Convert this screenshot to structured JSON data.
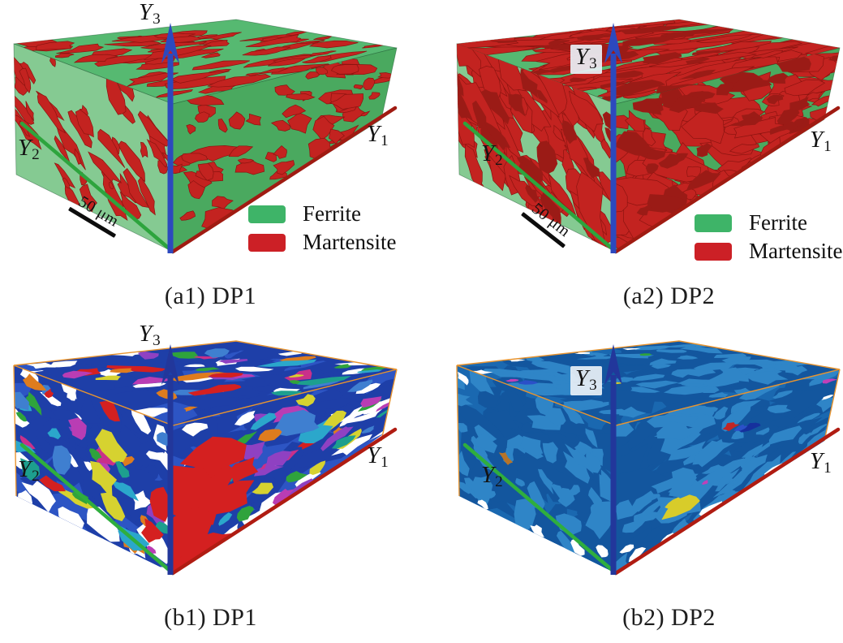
{
  "figure": {
    "background": "#ffffff",
    "panels": [
      {
        "id": "a1",
        "caption": "(a1) DP1",
        "sample": "DP1",
        "view": "phase-map",
        "axes": {
          "y1": {
            "base": "Y",
            "sub": "1"
          },
          "y2": {
            "base": "Y",
            "sub": "2"
          },
          "y3": {
            "base": "Y",
            "sub": "3"
          }
        },
        "scale_bar": {
          "label": "50 μm"
        },
        "legend": [
          {
            "label": "Ferrite",
            "color": "#3eb468"
          },
          {
            "label": "Martensite",
            "color": "#cc2026"
          }
        ],
        "colors": {
          "face_top": "#56b971",
          "face_left": "#85ca92",
          "face_right": "#4aa95f",
          "martensite": "#c32320",
          "martensite_edge": "#8c1410",
          "martensite_dark": "#9b1b16",
          "axis_y1": "#a01b12",
          "axis_y2": "#2da43d",
          "axis_y3": "#2c49be"
        }
      },
      {
        "id": "a2",
        "caption": "(a2) DP2",
        "sample": "DP2",
        "view": "phase-map",
        "axes": {
          "y1": {
            "base": "Y",
            "sub": "1"
          },
          "y2": {
            "base": "Y",
            "sub": "2"
          },
          "y3": {
            "base": "Y",
            "sub": "3"
          }
        },
        "scale_bar": {
          "label": "50 μm"
        },
        "legend": [
          {
            "label": "Ferrite",
            "color": "#3eb468"
          },
          {
            "label": "Martensite",
            "color": "#cc2026"
          }
        ],
        "colors": {
          "face_top": "#56b971",
          "face_left": "#85ca92",
          "face_right": "#4aa95f",
          "martensite": "#c32320",
          "martensite_edge": "#8c1410",
          "martensite_dark": "#9b1b16",
          "axis_y1": "#a01b12",
          "axis_y2": "#2da43d",
          "axis_y3": "#2c49be"
        }
      },
      {
        "id": "b1",
        "caption": "(b1) DP1",
        "sample": "DP1",
        "view": "grain-map",
        "axes": {
          "y1": {
            "base": "Y",
            "sub": "1"
          },
          "y2": {
            "base": "Y",
            "sub": "2"
          },
          "y3": {
            "base": "Y",
            "sub": "3"
          }
        },
        "colors": {
          "background": "#ffffff",
          "matrix": "#1e3fa8",
          "matrix_light": "#2d55c4",
          "frame": "#e8942f",
          "axis_y1": "#b01c12",
          "axis_y2": "#2fae3e",
          "axis_y3": "#22379b"
        },
        "grain_palette": [
          "#d42020",
          "#d6d230",
          "#b93db4",
          "#8f41c2",
          "#2ba7cb",
          "#1d9f8e",
          "#2fa33c",
          "#de7c1e",
          "#3f7fd0",
          "#c9308a"
        ]
      },
      {
        "id": "b2",
        "caption": "(b2) DP2",
        "sample": "DP2",
        "view": "grain-map",
        "axes": {
          "y1": {
            "base": "Y",
            "sub": "1"
          },
          "y2": {
            "base": "Y",
            "sub": "2"
          },
          "y3": {
            "base": "Y",
            "sub": "3"
          }
        },
        "colors": {
          "background": "#ffffff",
          "matrix": "#1a68b0",
          "matrix_dark": "#13569e",
          "matrix_light": "#2f85c7",
          "frame": "#e8942f",
          "axis_y1": "#b01c12",
          "axis_y2": "#2fae3e",
          "axis_y3": "#22379b"
        },
        "grain_palette": [
          "#d8cc2a",
          "#c22525",
          "#16309d",
          "#2b50c8",
          "#c040b8",
          "#2fa33c",
          "#b5742a"
        ]
      }
    ]
  }
}
